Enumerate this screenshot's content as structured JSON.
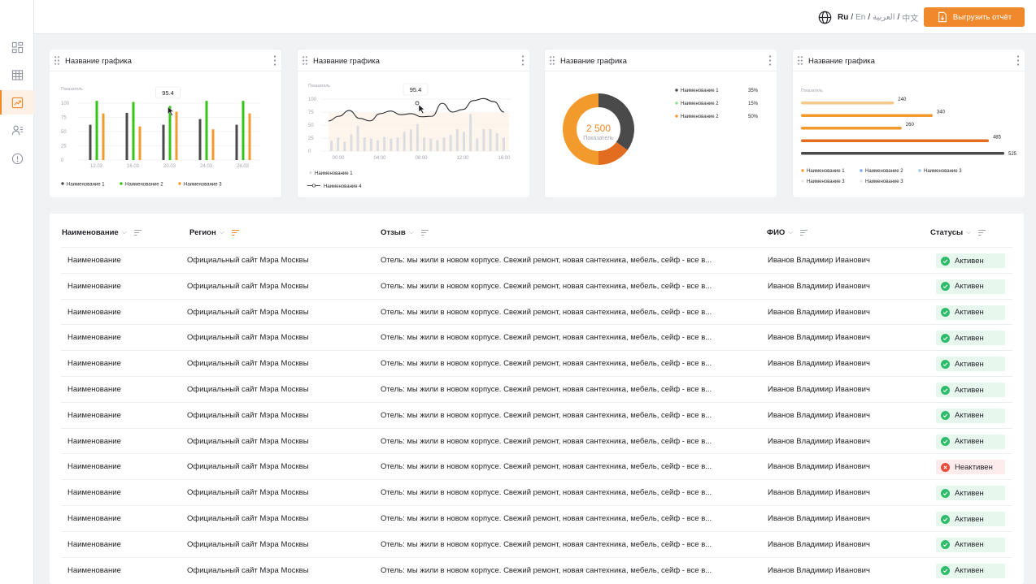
{
  "languages": [
    {
      "label": "Ru",
      "current": true
    },
    {
      "label": "En",
      "current": false
    },
    {
      "label": "العربية",
      "current": false
    },
    {
      "label": "中文",
      "current": false
    }
  ],
  "export_label": "Выгрузить отчёт",
  "sidebar": [
    "dashboard-icon",
    "table-icon",
    "analytics-icon",
    "users-icon",
    "info-icon"
  ],
  "colors": {
    "accent": "#f0892b",
    "dark": "#4a4a4a",
    "green": "#34c517",
    "orange_light": "#f7c988",
    "orange_mid": "#f39a2d",
    "orange_dark": "#e26d20",
    "active": "#2cbc6a",
    "inactive": "#e74c3c"
  },
  "chart_data": [
    {
      "type": "bar",
      "title": "Название графика",
      "ylabel": "Показатель",
      "ylim": [
        0,
        100
      ],
      "yticks": [
        "100",
        "75",
        "50",
        "25",
        "0"
      ],
      "categories": [
        "12.03",
        "16.03",
        "20.03",
        "24.03",
        "28.03"
      ],
      "series": [
        {
          "name": "Наименование 1",
          "values": [
            62,
            83,
            62,
            72,
            62
          ]
        },
        {
          "name": "Наименование 2",
          "values": [
            104,
            102,
            95,
            104,
            104
          ]
        },
        {
          "name": "Наименование 3",
          "values": [
            82,
            59,
            85,
            54,
            82
          ]
        }
      ],
      "tooltip": "95.4"
    },
    {
      "type": "line",
      "title": "Название графика",
      "ylabel": "Показатель",
      "ylim": [
        0,
        100
      ],
      "yticks": [
        "100",
        "75",
        "50",
        "25",
        "0"
      ],
      "xticks": [
        "00:00",
        "04:00",
        "08:00",
        "12:00",
        "16:00"
      ],
      "series": [
        {
          "name": "Наименование 1",
          "kind": "bar",
          "values": [
            20,
            26,
            18,
            32,
            48,
            26,
            24,
            21,
            27,
            24,
            26,
            37,
            42,
            52,
            26,
            24,
            21,
            26,
            31,
            42,
            37,
            71,
            24,
            42,
            42,
            34,
            26
          ]
        },
        {
          "name": "Наименование 4",
          "kind": "line",
          "values": [
            58,
            67,
            78,
            63,
            58,
            72,
            77,
            70,
            72,
            66,
            67,
            92,
            75,
            80,
            97,
            101,
            95,
            75
          ]
        }
      ],
      "tooltip": "95.4"
    },
    {
      "type": "pie",
      "title": "Название графика",
      "center_value": "2 500",
      "center_label": "Показатель",
      "slices": [
        {
          "name": "Наименование 1",
          "value": 35,
          "label": "35%"
        },
        {
          "name": "Наименование 2",
          "value": 15,
          "label": "15%"
        },
        {
          "name": "Наименование 2",
          "value": 50,
          "label": "50%"
        }
      ]
    },
    {
      "type": "bar",
      "orientation": "horizontal",
      "title": "Название графика",
      "xlabel": "Показатель",
      "values": [
        240,
        340,
        260,
        485,
        525
      ],
      "value_labels": [
        "240",
        "340",
        "260",
        "485",
        "525"
      ],
      "legend": [
        "Наименование 1",
        "Наименование 2",
        "Наименование 3",
        "Наименование 3",
        "Наименование 3"
      ]
    }
  ],
  "table": {
    "headers": [
      "Наименование",
      "Регион",
      "Отзыв",
      "ФИО",
      "Статусы"
    ],
    "rows": [
      [
        "Наименование",
        "Официальный сайт Мэра Москвы",
        "Отель: мы жили в новом корпусе. Свежий ремонт, новая сантехника, мебель, сейф - все в...",
        "Иванов Владимир Иванович",
        "Активен"
      ],
      [
        "Наименование",
        "Официальный сайт Мэра Москвы",
        "Отель: мы жили в новом корпусе. Свежий ремонт, новая сантехника, мебель, сейф - все в...",
        "Иванов Владимир Иванович",
        "Активен"
      ],
      [
        "Наименование",
        "Официальный сайт Мэра Москвы",
        "Отель: мы жили в новом корпусе. Свежий ремонт, новая сантехника, мебель, сейф - все в...",
        "Иванов Владимир Иванович",
        "Активен"
      ],
      [
        "Наименование",
        "Официальный сайт Мэра Москвы",
        "Отель: мы жили в новом корпусе. Свежий ремонт, новая сантехника, мебель, сейф - все в...",
        "Иванов Владимир Иванович",
        "Активен"
      ],
      [
        "Наименование",
        "Официальный сайт Мэра Москвы",
        "Отель: мы жили в новом корпусе. Свежий ремонт, новая сантехника, мебель, сейф - все в...",
        "Иванов Владимир Иванович",
        "Активен"
      ],
      [
        "Наименование",
        "Официальный сайт Мэра Москвы",
        "Отель: мы жили в новом корпусе. Свежий ремонт, новая сантехника, мебель, сейф - все в...",
        "Иванов Владимир Иванович",
        "Активен"
      ],
      [
        "Наименование",
        "Официальный сайт Мэра Москвы",
        "Отель: мы жили в новом корпусе. Свежий ремонт, новая сантехника, мебель, сейф - все в...",
        "Иванов Владимир Иванович",
        "Активен"
      ],
      [
        "Наименование",
        "Официальный сайт Мэра Москвы",
        "Отель: мы жили в новом корпусе. Свежий ремонт, новая сантехника, мебель, сейф - все в...",
        "Иванов Владимир Иванович",
        "Активен"
      ],
      [
        "Наименование",
        "Официальный сайт Мэра Москвы",
        "Отель: мы жили в новом корпусе. Свежий ремонт, новая сантехника, мебель, сейф - все в...",
        "Иванов Владимир Иванович",
        "Неактивен"
      ],
      [
        "Наименование",
        "Официальный сайт Мэра Москвы",
        "Отель: мы жили в новом корпусе. Свежий ремонт, новая сантехника, мебель, сейф - все в...",
        "Иванов Владимир Иванович",
        "Активен"
      ],
      [
        "Наименование",
        "Официальный сайт Мэра Москвы",
        "Отель: мы жили в новом корпусе. Свежий ремонт, новая сантехника, мебель, сейф - все в...",
        "Иванов Владимир Иванович",
        "Активен"
      ],
      [
        "Наименование",
        "Официальный сайт Мэра Москвы",
        "Отель: мы жили в новом корпусе. Свежий ремонт, новая сантехника, мебель, сейф - все в...",
        "Иванов Владимир Иванович",
        "Активен"
      ],
      [
        "Наименование",
        "Официальный сайт Мэра Москвы",
        "Отель: мы жили в новом корпусе. Свежий ремонт, новая сантехника, мебель, сейф - все в...",
        "Иванов Владимир Иванович",
        "Активен"
      ]
    ]
  }
}
